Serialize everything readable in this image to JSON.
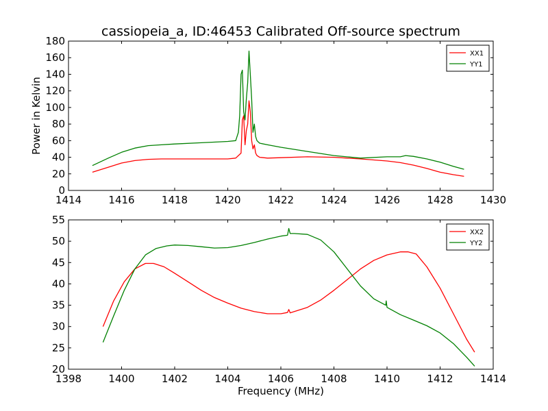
{
  "chart_data": [
    {
      "type": "line",
      "title": "cassiopeia_a, ID:46453 Calibrated Off-source spectrum",
      "xlabel": "",
      "ylabel": "Power in Kelvin",
      "xlim": [
        1414,
        1430
      ],
      "ylim": [
        0,
        180
      ],
      "xticks": [
        "1414",
        "1416",
        "1418",
        "1420",
        "1422",
        "1424",
        "1426",
        "1428",
        "1430"
      ],
      "yticks": [
        "0",
        "20",
        "40",
        "60",
        "80",
        "100",
        "120",
        "140",
        "160",
        "180"
      ],
      "legend": "top-right",
      "grid": false,
      "series": [
        {
          "name": "XX1",
          "color": "#ff0000",
          "x": [
            1414.9,
            1415.5,
            1416,
            1416.5,
            1417,
            1417.5,
            1418,
            1419,
            1420,
            1420.3,
            1420.5,
            1420.55,
            1420.6,
            1420.65,
            1420.7,
            1420.75,
            1420.8,
            1420.85,
            1420.9,
            1420.95,
            1421,
            1421.05,
            1421.1,
            1421.2,
            1421.5,
            1422,
            1423,
            1424,
            1425,
            1426,
            1426.5,
            1427,
            1427.5,
            1428,
            1428.5,
            1428.9
          ],
          "y": [
            22,
            28,
            33,
            36,
            37.5,
            38,
            38,
            38,
            38,
            39,
            45,
            85,
            90,
            55,
            72,
            80,
            108,
            95,
            60,
            50,
            55,
            45,
            42,
            40,
            39,
            39.5,
            40.5,
            40,
            38,
            35.5,
            33.5,
            30.5,
            26.5,
            22,
            19,
            17
          ]
        },
        {
          "name": "YY1",
          "color": "#008000",
          "x": [
            1414.9,
            1415.5,
            1416,
            1416.5,
            1417,
            1417.5,
            1418,
            1419,
            1420,
            1420.3,
            1420.4,
            1420.45,
            1420.5,
            1420.55,
            1420.6,
            1420.65,
            1420.7,
            1420.75,
            1420.8,
            1420.85,
            1420.9,
            1420.95,
            1421,
            1421.05,
            1421.1,
            1421.2,
            1421.5,
            1422,
            1423,
            1424,
            1425,
            1426,
            1426.5,
            1426.7,
            1427,
            1427.5,
            1428,
            1428.5,
            1428.9
          ],
          "y": [
            30,
            39,
            46,
            51,
            54,
            55,
            56,
            57.5,
            59,
            60,
            70,
            90,
            140,
            145,
            95,
            85,
            110,
            130,
            168,
            140,
            110,
            70,
            80,
            65,
            60,
            57,
            55,
            52,
            47,
            42,
            39,
            40.5,
            40.5,
            42,
            41,
            38,
            34,
            29,
            25.5
          ]
        }
      ]
    },
    {
      "type": "line",
      "title": "",
      "xlabel": "Frequency (MHz)",
      "ylabel": "",
      "xlim": [
        1398,
        1414
      ],
      "ylim": [
        20,
        55
      ],
      "xticks": [
        "1398",
        "1400",
        "1402",
        "1404",
        "1406",
        "1408",
        "1410",
        "1412",
        "1414"
      ],
      "yticks": [
        "20",
        "25",
        "30",
        "35",
        "40",
        "45",
        "50",
        "55"
      ],
      "legend": "top-right",
      "grid": false,
      "series": [
        {
          "name": "XX2",
          "color": "#ff0000",
          "x": [
            1399.3,
            1399.7,
            1400.1,
            1400.5,
            1400.9,
            1401.2,
            1401.6,
            1402,
            1402.5,
            1403,
            1403.5,
            1404,
            1404.5,
            1405,
            1405.5,
            1406,
            1406.25,
            1406.3,
            1406.35,
            1406.5,
            1407,
            1407.5,
            1408,
            1408.5,
            1409,
            1409.5,
            1410,
            1410.5,
            1410.8,
            1411.1,
            1411.5,
            1412,
            1412.5,
            1413,
            1413.3
          ],
          "y": [
            30,
            36,
            40.5,
            43.5,
            44.8,
            44.8,
            44,
            42.5,
            40.5,
            38.5,
            36.8,
            35.5,
            34.3,
            33.5,
            33,
            33,
            33.3,
            34,
            33.2,
            33.5,
            34.5,
            36.2,
            38.5,
            41,
            43.5,
            45.5,
            46.8,
            47.5,
            47.5,
            47,
            44,
            39,
            33,
            27,
            24
          ]
        },
        {
          "name": "YY2",
          "color": "#008000",
          "x": [
            1399.3,
            1399.7,
            1400.1,
            1400.5,
            1400.9,
            1401.3,
            1401.7,
            1402,
            1402.5,
            1403,
            1403.5,
            1404,
            1404.5,
            1405,
            1405.5,
            1406,
            1406.25,
            1406.3,
            1406.35,
            1406.5,
            1407,
            1407.5,
            1408,
            1408.5,
            1409,
            1409.5,
            1409.95,
            1409.97,
            1410,
            1410.5,
            1411,
            1411.5,
            1412,
            1412.5,
            1413,
            1413.3
          ],
          "y": [
            26.3,
            32.5,
            38.5,
            43.5,
            46.8,
            48.3,
            48.9,
            49.1,
            49,
            48.7,
            48.4,
            48.5,
            49,
            49.7,
            50.5,
            51.2,
            51.4,
            53,
            51.8,
            51.8,
            51.6,
            50.3,
            47.5,
            43.5,
            39.5,
            36.5,
            35,
            36,
            34.5,
            32.8,
            31.5,
            30.2,
            28.5,
            26,
            22.8,
            20.7
          ]
        }
      ]
    }
  ]
}
